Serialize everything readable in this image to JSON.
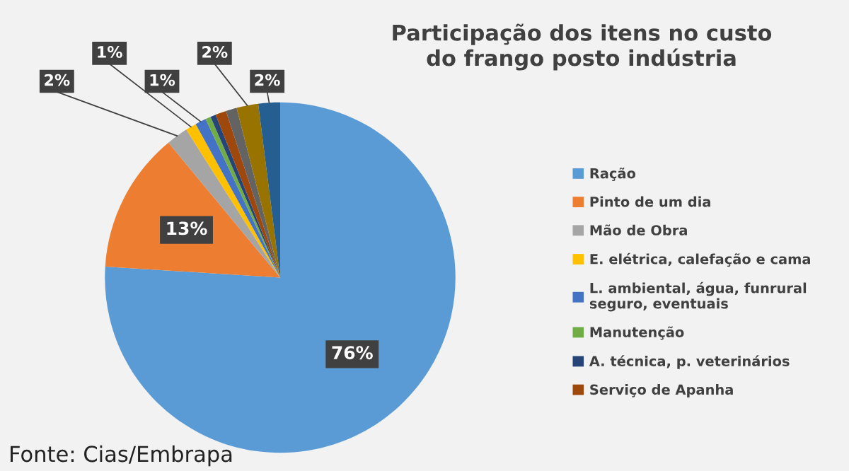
{
  "chart_data": {
    "type": "pie",
    "title": "Participação dos itens no custo\ndo frango posto indústria",
    "categories": [
      "Ração",
      "Pinto de um dia",
      "Mão de Obra",
      "E. elétrica, calefação e cama",
      "L. ambiental, água, funrural\nseguro, eventuais",
      "Manutenção",
      "A. técnica, p. veterinários",
      "Serviço de Apanha",
      null,
      null,
      null
    ],
    "values": [
      76,
      13,
      2,
      1,
      1,
      0.5,
      0.5,
      1,
      1,
      2,
      2
    ],
    "colors": [
      "#5b9bd5",
      "#ed7d31",
      "#a5a5a5",
      "#ffc000",
      "#4472c4",
      "#70ad47",
      "#264478",
      "#9e480e",
      "#636363",
      "#997300",
      "#255e91"
    ],
    "value_labels": [
      "76%",
      "13%",
      "2%",
      "1%",
      "1%",
      null,
      null,
      null,
      null,
      "2%",
      "2%"
    ],
    "legend": "right",
    "annotations": [
      "Fonte: Cias/Embrapa"
    ]
  }
}
